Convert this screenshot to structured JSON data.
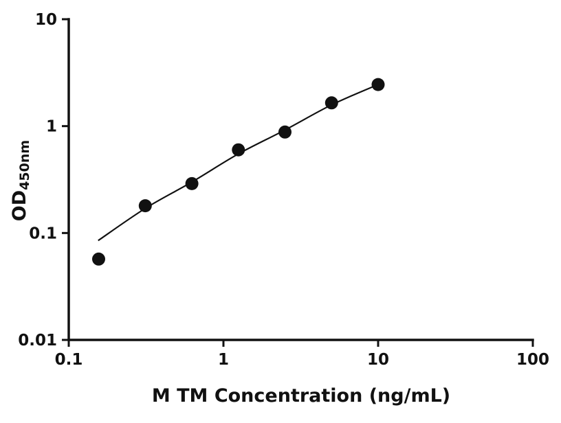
{
  "chart_data": {
    "type": "scatter",
    "title": "",
    "xlabel": "M TM Concentration (ng/mL)",
    "ylabel_main": "OD",
    "ylabel_sub": "450nm",
    "x_scale": "log",
    "y_scale": "log",
    "xlim": [
      0.1,
      100
    ],
    "ylim": [
      0.01,
      10
    ],
    "x_ticks": [
      0.1,
      1,
      10,
      100
    ],
    "x_tick_labels": [
      "0.1",
      "1",
      "10",
      "100"
    ],
    "y_ticks": [
      0.01,
      0.1,
      1,
      10
    ],
    "y_tick_labels": [
      "0.01",
      "0.1",
      "1",
      "10"
    ],
    "grid": false,
    "legend": "none",
    "points": {
      "x": [
        0.156,
        0.3125,
        0.625,
        1.25,
        2.5,
        5,
        10
      ],
      "y": [
        0.057,
        0.18,
        0.29,
        0.6,
        0.88,
        1.65,
        2.45
      ]
    },
    "fit_curve": {
      "x": [
        0.155,
        0.3125,
        0.625,
        1.25,
        2.5,
        5,
        10
      ],
      "y": [
        0.085,
        0.17,
        0.3,
        0.55,
        0.92,
        1.58,
        2.45
      ]
    },
    "marker": {
      "shape": "circle",
      "color": "#111111",
      "radius_px": 9.5
    },
    "line_color": "#111111",
    "axis_color": "#111111",
    "background": "#ffffff"
  }
}
